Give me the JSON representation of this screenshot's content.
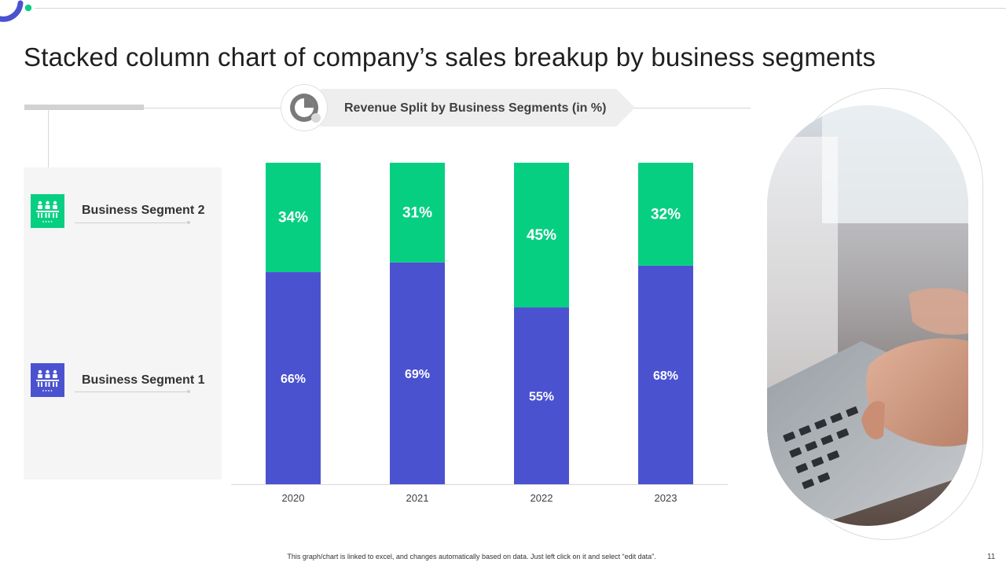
{
  "title": "Stacked column chart of company’s sales breakup by business segments",
  "chart_header": "Revenue Split by Business Segments (in %)",
  "legend": [
    {
      "label": "Business Segment 2",
      "color": "#07cf82"
    },
    {
      "label": "Business Segment 1",
      "color": "#4b52d0"
    }
  ],
  "chart_data": {
    "type": "bar",
    "stacked": true,
    "title": "Revenue Split by Business Segments (in %)",
    "categories": [
      "2020",
      "2021",
      "2022",
      "2023"
    ],
    "series": [
      {
        "name": "Business Segment 1",
        "values": [
          66,
          69,
          55,
          68
        ],
        "color": "#4b52d0"
      },
      {
        "name": "Business Segment 2",
        "values": [
          34,
          31,
          45,
          32
        ],
        "color": "#07cf82"
      }
    ],
    "data_labels": [
      [
        "66%",
        "69%",
        "55%",
        "68%"
      ],
      [
        "34%",
        "31%",
        "45%",
        "32%"
      ]
    ],
    "ylim": [
      0,
      100
    ],
    "grid": false,
    "legend_position": "left"
  },
  "footer_note": "This graph/chart is linked to excel, and changes automatically based on data. Just left click on it and select “edit data”.",
  "page_number": "11",
  "icons": {
    "corner": "corner-arc-decoration",
    "header": "pie-chart-icon",
    "legend": "people-desks-icon",
    "photo": "laptop-typing-photo"
  },
  "colors": {
    "accent_blue": "#4b52d0",
    "accent_green": "#07cf82"
  }
}
